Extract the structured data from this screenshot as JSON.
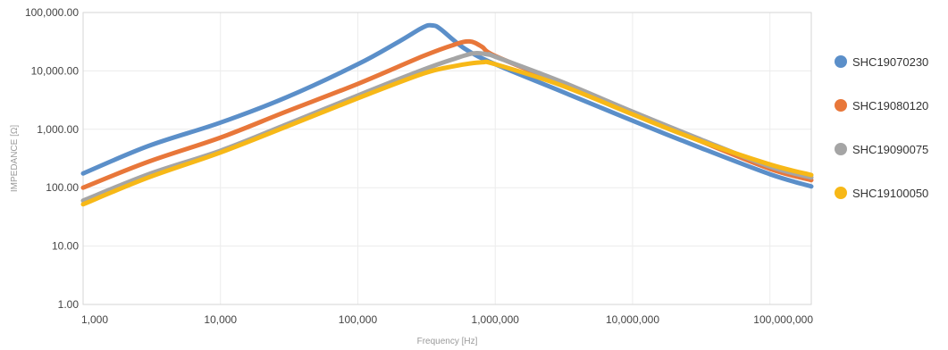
{
  "chart_data": {
    "type": "line",
    "title": "",
    "xlabel": "Frequency [Hz]",
    "ylabel": "IMPEDANCE [Ω]",
    "x_scale": "log",
    "y_scale": "log",
    "xlim": [
      1000,
      200000000
    ],
    "ylim": [
      1,
      100000
    ],
    "x_ticks": [
      1000,
      10000,
      100000,
      1000000,
      10000000,
      100000000
    ],
    "x_tick_labels": [
      "1,000",
      "10,000",
      "100,000",
      "1,000,000",
      "10,000,000",
      "100,000,000"
    ],
    "y_ticks": [
      1,
      10,
      100,
      1000,
      10000,
      100000
    ],
    "y_tick_labels": [
      "1.00",
      "10.00",
      "100.00",
      "1,000.00",
      "10,000.00",
      "100,000.00"
    ],
    "grid": true,
    "legend_position": "right",
    "series": [
      {
        "name": "SHC19070230",
        "color": "#5b8fc9",
        "points": [
          [
            1000,
            175
          ],
          [
            3000,
            520
          ],
          [
            10000,
            1300
          ],
          [
            30000,
            3500
          ],
          [
            100000,
            13000
          ],
          [
            200000,
            32000
          ],
          [
            300000,
            56000
          ],
          [
            350000,
            60000
          ],
          [
            400000,
            52000
          ],
          [
            600000,
            24000
          ],
          [
            1000000,
            13000
          ],
          [
            3000000,
            4500
          ],
          [
            10000000,
            1400
          ],
          [
            30000000,
            500
          ],
          [
            100000000,
            170
          ],
          [
            200000000,
            105
          ]
        ]
      },
      {
        "name": "SHC19080120",
        "color": "#e8773a",
        "points": [
          [
            1000,
            100
          ],
          [
            3000,
            280
          ],
          [
            10000,
            720
          ],
          [
            30000,
            2000
          ],
          [
            100000,
            6000
          ],
          [
            300000,
            18000
          ],
          [
            500000,
            28000
          ],
          [
            650000,
            32000
          ],
          [
            800000,
            26000
          ],
          [
            1000000,
            18000
          ],
          [
            3000000,
            6200
          ],
          [
            10000000,
            1900
          ],
          [
            30000000,
            650
          ],
          [
            100000000,
            210
          ],
          [
            200000000,
            135
          ]
        ]
      },
      {
        "name": "SHC19090075",
        "color": "#a5a5a5",
        "points": [
          [
            1000,
            60
          ],
          [
            3000,
            170
          ],
          [
            10000,
            430
          ],
          [
            30000,
            1200
          ],
          [
            100000,
            3800
          ],
          [
            300000,
            10500
          ],
          [
            500000,
            16000
          ],
          [
            700000,
            20000
          ],
          [
            900000,
            19000
          ],
          [
            1000000,
            17500
          ],
          [
            3000000,
            6600
          ],
          [
            10000000,
            2000
          ],
          [
            30000000,
            700
          ],
          [
            100000000,
            230
          ],
          [
            200000000,
            150
          ]
        ]
      },
      {
        "name": "SHC19100050",
        "color": "#f7b817",
        "points": [
          [
            1000,
            52
          ],
          [
            3000,
            150
          ],
          [
            10000,
            400
          ],
          [
            30000,
            1100
          ],
          [
            100000,
            3400
          ],
          [
            300000,
            9000
          ],
          [
            500000,
            12000
          ],
          [
            800000,
            14000
          ],
          [
            1000000,
            13000
          ],
          [
            3000000,
            5700
          ],
          [
            10000000,
            1800
          ],
          [
            30000000,
            650
          ],
          [
            100000000,
            250
          ],
          [
            200000000,
            165
          ]
        ]
      }
    ]
  }
}
